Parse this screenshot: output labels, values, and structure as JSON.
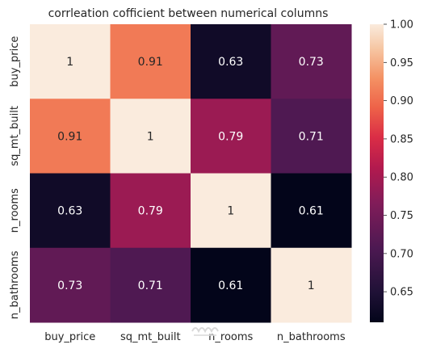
{
  "chart_data": {
    "type": "heatmap",
    "title": "corrleation cofficient between numerical columns",
    "xlabel": "",
    "ylabel": "",
    "x_categories": [
      "buy_price",
      "sq_mt_built",
      "n_rooms",
      "n_bathrooms"
    ],
    "y_categories": [
      "buy_price",
      "sq_mt_built",
      "n_rooms",
      "n_bathrooms"
    ],
    "values": [
      [
        1,
        0.91,
        0.63,
        0.73
      ],
      [
        0.91,
        1,
        0.79,
        0.71
      ],
      [
        0.63,
        0.79,
        1,
        0.61
      ],
      [
        0.73,
        0.71,
        0.61,
        1
      ]
    ],
    "cell_labels": [
      [
        "1",
        "0.91",
        "0.63",
        "0.73"
      ],
      [
        "0.91",
        "1",
        "0.79",
        "0.71"
      ],
      [
        "0.63",
        "0.79",
        "1",
        "0.61"
      ],
      [
        "0.73",
        "0.71",
        "0.61",
        "1"
      ]
    ],
    "colorbar": {
      "range": [
        0.61,
        1.0
      ],
      "ticks": [
        "1.00",
        "0.95",
        "0.90",
        "0.85",
        "0.80",
        "0.75",
        "0.70",
        "0.65"
      ],
      "colormap": "rocket"
    },
    "grid": false
  }
}
